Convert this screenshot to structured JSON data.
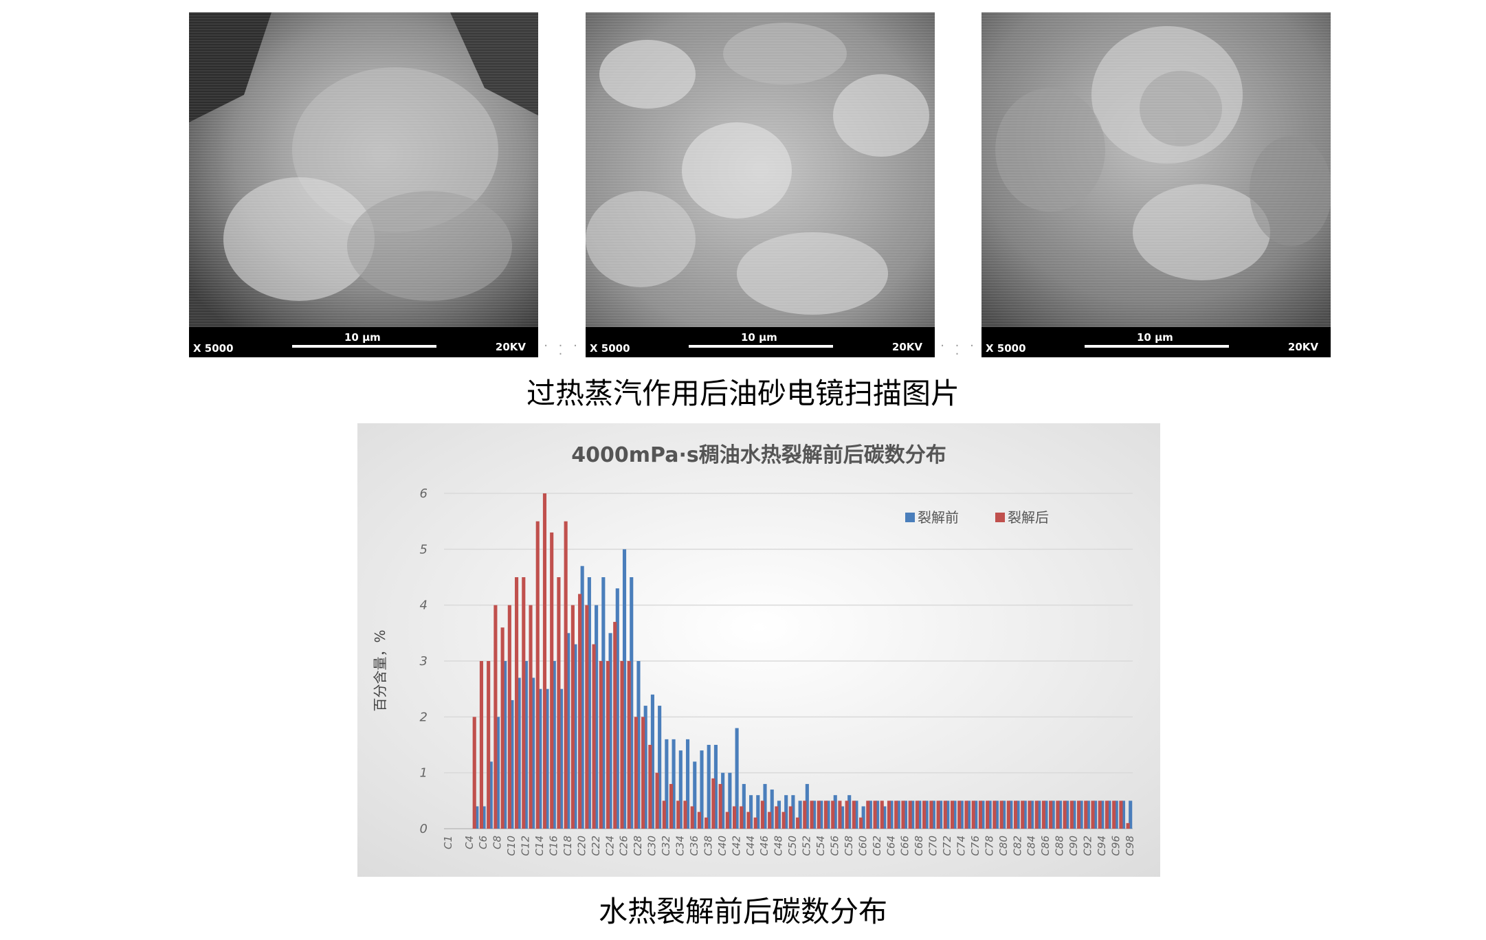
{
  "sem_images": [
    {
      "magnification": "X 5000",
      "scale_label": "10 µm",
      "voltage": "20KV"
    },
    {
      "magnification": "X 5000",
      "scale_label": "10 µm",
      "voltage": "20KV"
    },
    {
      "magnification": "X 5000",
      "scale_label": "10 µm",
      "voltage": "20KV"
    }
  ],
  "caption_top": "过热蒸汽作用后油砂电镜扫描图片",
  "caption_bottom": "水热裂解前后碳数分布",
  "chart_data": {
    "type": "bar",
    "title": "4000mPa·s稠油水热裂解前后碳数分布",
    "xlabel": "",
    "ylabel": "百分含量，%",
    "ylim": [
      0,
      6
    ],
    "yticks": [
      0,
      1,
      2,
      3,
      4,
      5,
      6
    ],
    "grid": true,
    "legend_position": "top-right",
    "categories": [
      "C1",
      "C2",
      "C3",
      "C4",
      "C5",
      "C6",
      "C7",
      "C8",
      "C9",
      "C10",
      "C11",
      "C12",
      "C13",
      "C14",
      "C15",
      "C16",
      "C17",
      "C18",
      "C19",
      "C20",
      "C21",
      "C22",
      "C23",
      "C24",
      "C25",
      "C26",
      "C27",
      "C28",
      "C29",
      "C30",
      "C31",
      "C32",
      "C33",
      "C34",
      "C35",
      "C36",
      "C37",
      "C38",
      "C39",
      "C40",
      "C41",
      "C42",
      "C43",
      "C44",
      "C45",
      "C46",
      "C47",
      "C48",
      "C49",
      "C50",
      "C51",
      "C52",
      "C53",
      "C54",
      "C55",
      "C56",
      "C57",
      "C58",
      "C59",
      "C60",
      "C61",
      "C62",
      "C63",
      "C64",
      "C65",
      "C66",
      "C67",
      "C68",
      "C69",
      "C70",
      "C71",
      "C72",
      "C73",
      "C74",
      "C75",
      "C76",
      "C77",
      "C78",
      "C79",
      "C80",
      "C81",
      "C82",
      "C83",
      "C84",
      "C85",
      "C86",
      "C87",
      "C88",
      "C89",
      "C90",
      "C91",
      "C92",
      "C93",
      "C94",
      "C95",
      "C96",
      "C97",
      "C98"
    ],
    "tick_labels": [
      "C1",
      "C4",
      "C6",
      "C8",
      "C10",
      "C12",
      "C14",
      "C16",
      "C18",
      "C20",
      "C22",
      "C24",
      "C26",
      "C28",
      "C30",
      "C32",
      "C34",
      "C36",
      "C38",
      "C40",
      "C42",
      "C44",
      "C46",
      "C48",
      "C50",
      "C52",
      "C54",
      "C56",
      "C58",
      "C60",
      "C62",
      "C64",
      "C66",
      "C68",
      "C70",
      "C72",
      "C74",
      "C76",
      "C78",
      "C80",
      "C82",
      "C84",
      "C86",
      "C88",
      "C90",
      "C92",
      "C94",
      "C96",
      "C98"
    ],
    "series": [
      {
        "name": "裂解前",
        "color": "#4a7ebb",
        "values": [
          0,
          0,
          0,
          0,
          0.4,
          0.4,
          1.2,
          2.0,
          3.0,
          2.3,
          2.7,
          3.0,
          2.7,
          2.5,
          2.5,
          3.0,
          2.5,
          3.5,
          3.3,
          4.7,
          4.5,
          4.0,
          4.5,
          3.5,
          4.3,
          5.0,
          4.5,
          3.0,
          2.2,
          2.4,
          2.2,
          1.6,
          1.6,
          1.4,
          1.6,
          1.2,
          1.4,
          1.5,
          1.5,
          1.0,
          1.0,
          1.8,
          0.8,
          0.6,
          0.6,
          0.8,
          0.7,
          0.5,
          0.6,
          0.6,
          0.5,
          0.8,
          0.5,
          0.5,
          0.5,
          0.6,
          0.4,
          0.6,
          0.5,
          0.4,
          0.5,
          0.5,
          0.4,
          0.5,
          0.5,
          0.5,
          0.5,
          0.5,
          0.5,
          0.5,
          0.5,
          0.5,
          0.5,
          0.5,
          0.5,
          0.5,
          0.5,
          0.5,
          0.5,
          0.5,
          0.5,
          0.5,
          0.5,
          0.5,
          0.5,
          0.5,
          0.5,
          0.5,
          0.5,
          0.5,
          0.5,
          0.5,
          0.5,
          0.5,
          0.5,
          0.5,
          0.5,
          0.5
        ]
      },
      {
        "name": "裂解后",
        "color": "#c0504d",
        "values": [
          0,
          0,
          0,
          0,
          2.0,
          3.0,
          3.0,
          4.0,
          3.6,
          4.0,
          4.5,
          4.5,
          4.0,
          5.5,
          6.0,
          5.3,
          4.5,
          5.5,
          4.0,
          4.2,
          4.0,
          3.3,
          3.0,
          3.0,
          3.7,
          3.0,
          3.0,
          2.0,
          2.0,
          1.5,
          1.0,
          0.5,
          0.8,
          0.5,
          0.5,
          0.4,
          0.3,
          0.2,
          0.9,
          0.8,
          0.3,
          0.4,
          0.4,
          0.3,
          0.2,
          0.5,
          0.3,
          0.4,
          0.3,
          0.4,
          0.2,
          0.5,
          0.5,
          0.5,
          0.5,
          0.5,
          0.5,
          0.5,
          0.5,
          0.2,
          0.5,
          0.5,
          0.5,
          0.5,
          0.5,
          0.5,
          0.5,
          0.5,
          0.5,
          0.5,
          0.5,
          0.5,
          0.5,
          0.5,
          0.5,
          0.5,
          0.5,
          0.5,
          0.5,
          0.5,
          0.5,
          0.5,
          0.5,
          0.5,
          0.5,
          0.5,
          0.5,
          0.5,
          0.5,
          0.5,
          0.5,
          0.5,
          0.5,
          0.5,
          0.5,
          0.5,
          0.5,
          0.1
        ]
      }
    ]
  }
}
